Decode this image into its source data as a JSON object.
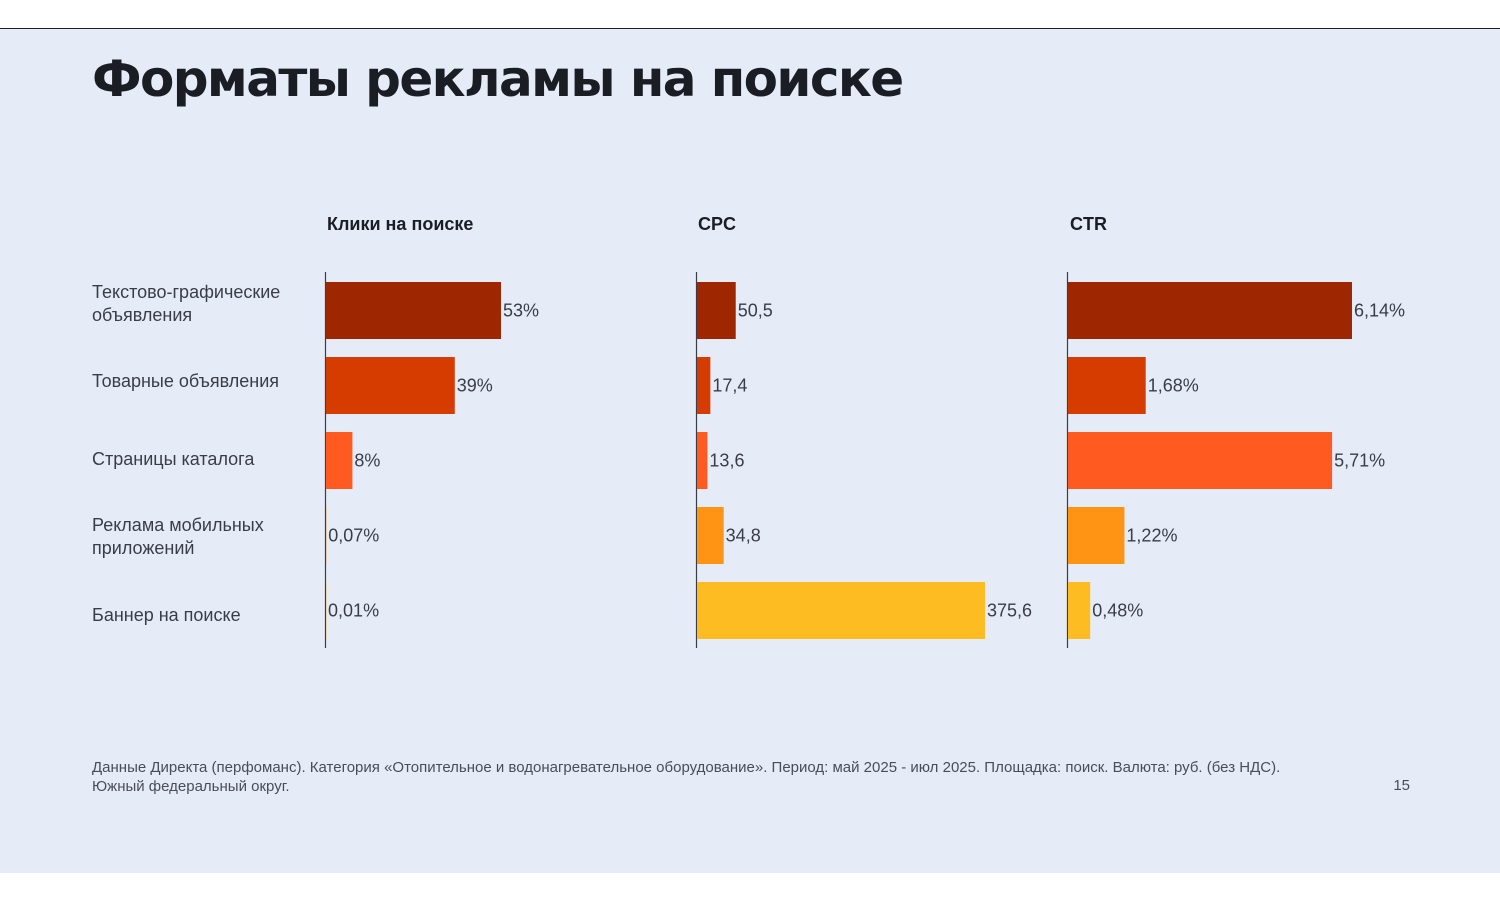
{
  "slide": {
    "title": "Форматы рекламы на поиске",
    "categories": [
      "Текстово-графические объявления",
      "Товарные объявления",
      "Страницы каталога",
      "Реклама мобильных приложений",
      "Баннер на поиске"
    ],
    "footnote": "Данные Директа (перфоманс). Категория «Отопительное и водонагревательное оборудование». Период: май 2025 - июл 2025. Площадка: поиск. Валюта: руб. (без НДС). Южный федеральный округ.",
    "page_number": "15"
  },
  "chart_data": [
    {
      "type": "bar",
      "orientation": "horizontal",
      "title": "Клики на поиске",
      "categories": [
        "Текстово-графические объявления",
        "Товарные объявления",
        "Страницы каталога",
        "Реклама мобильных приложений",
        "Баннер на поиске"
      ],
      "values": [
        53,
        39,
        8,
        0.07,
        0.01
      ],
      "value_labels": [
        "53%",
        "39%",
        "8%",
        "0,07%",
        "0,01%"
      ],
      "xlim": [
        0,
        53
      ],
      "grid": false
    },
    {
      "type": "bar",
      "orientation": "horizontal",
      "title": "CPC",
      "categories": [
        "Текстово-графические объявления",
        "Товарные объявления",
        "Страницы каталога",
        "Реклама мобильных приложений",
        "Баннер на поиске"
      ],
      "values": [
        50.5,
        17.4,
        13.6,
        34.8,
        375.6
      ],
      "value_labels": [
        "50,5",
        "17,4",
        "13,6",
        "34,8",
        "375,6"
      ],
      "xlim": [
        0,
        375.6
      ],
      "grid": false
    },
    {
      "type": "bar",
      "orientation": "horizontal",
      "title": "CTR",
      "categories": [
        "Текстово-графические объявления",
        "Товарные объявления",
        "Страницы каталога",
        "Реклама мобильных приложений",
        "Баннер на поиске"
      ],
      "values": [
        6.14,
        1.68,
        5.71,
        1.22,
        0.48
      ],
      "value_labels": [
        "6,14%",
        "1,68%",
        "5,71%",
        "1,22%",
        "0,48%"
      ],
      "xlim": [
        0,
        6.14
      ],
      "grid": false
    }
  ],
  "colors": {
    "background": "#e6ecf7",
    "text": "#1b1d24",
    "axis": "#3a3d47",
    "category_colors": [
      "#9e2600",
      "#d63c00",
      "#ff5a20",
      "#ff9314",
      "#fdbd22"
    ]
  }
}
